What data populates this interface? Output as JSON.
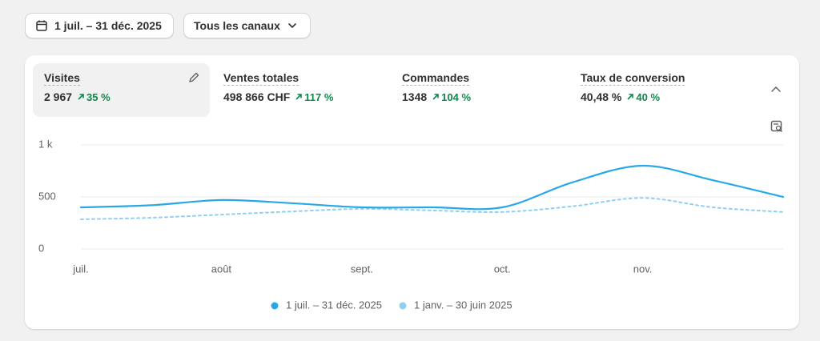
{
  "toolbar": {
    "date_range": "1 juil. – 31 déc. 2025",
    "channel": "Tous les canaux"
  },
  "metrics": [
    {
      "label": "Visites",
      "value": "2 967",
      "change": "35 %"
    },
    {
      "label": "Ventes totales",
      "value": "498 866 CHF",
      "change": "117 %"
    },
    {
      "label": "Commandes",
      "value": "1348",
      "change": "104 %"
    },
    {
      "label": "Taux de conversion",
      "value": "40,48 %",
      "change": "40 %"
    }
  ],
  "chart_data": {
    "type": "line",
    "categories": [
      "juil.",
      null,
      "août",
      null,
      "sept.",
      null,
      "oct.",
      null,
      "nov.",
      null,
      null
    ],
    "series": [
      {
        "name": "1 juil. – 31 déc. 2025",
        "color": "#29a8e8",
        "dashed": false,
        "values": [
          400,
          420,
          470,
          440,
          400,
          400,
          400,
          640,
          800,
          660,
          500
        ]
      },
      {
        "name": "1 janv. – 30 juin 2025",
        "color": "#8fd0f0",
        "dashed": true,
        "values": [
          285,
          300,
          330,
          360,
          385,
          370,
          355,
          410,
          490,
          400,
          355
        ]
      }
    ],
    "ylim": [
      0,
      1000
    ],
    "yticks": [
      0,
      500,
      {
        "value": 1000,
        "label": "1 k"
      }
    ],
    "grid": true
  }
}
